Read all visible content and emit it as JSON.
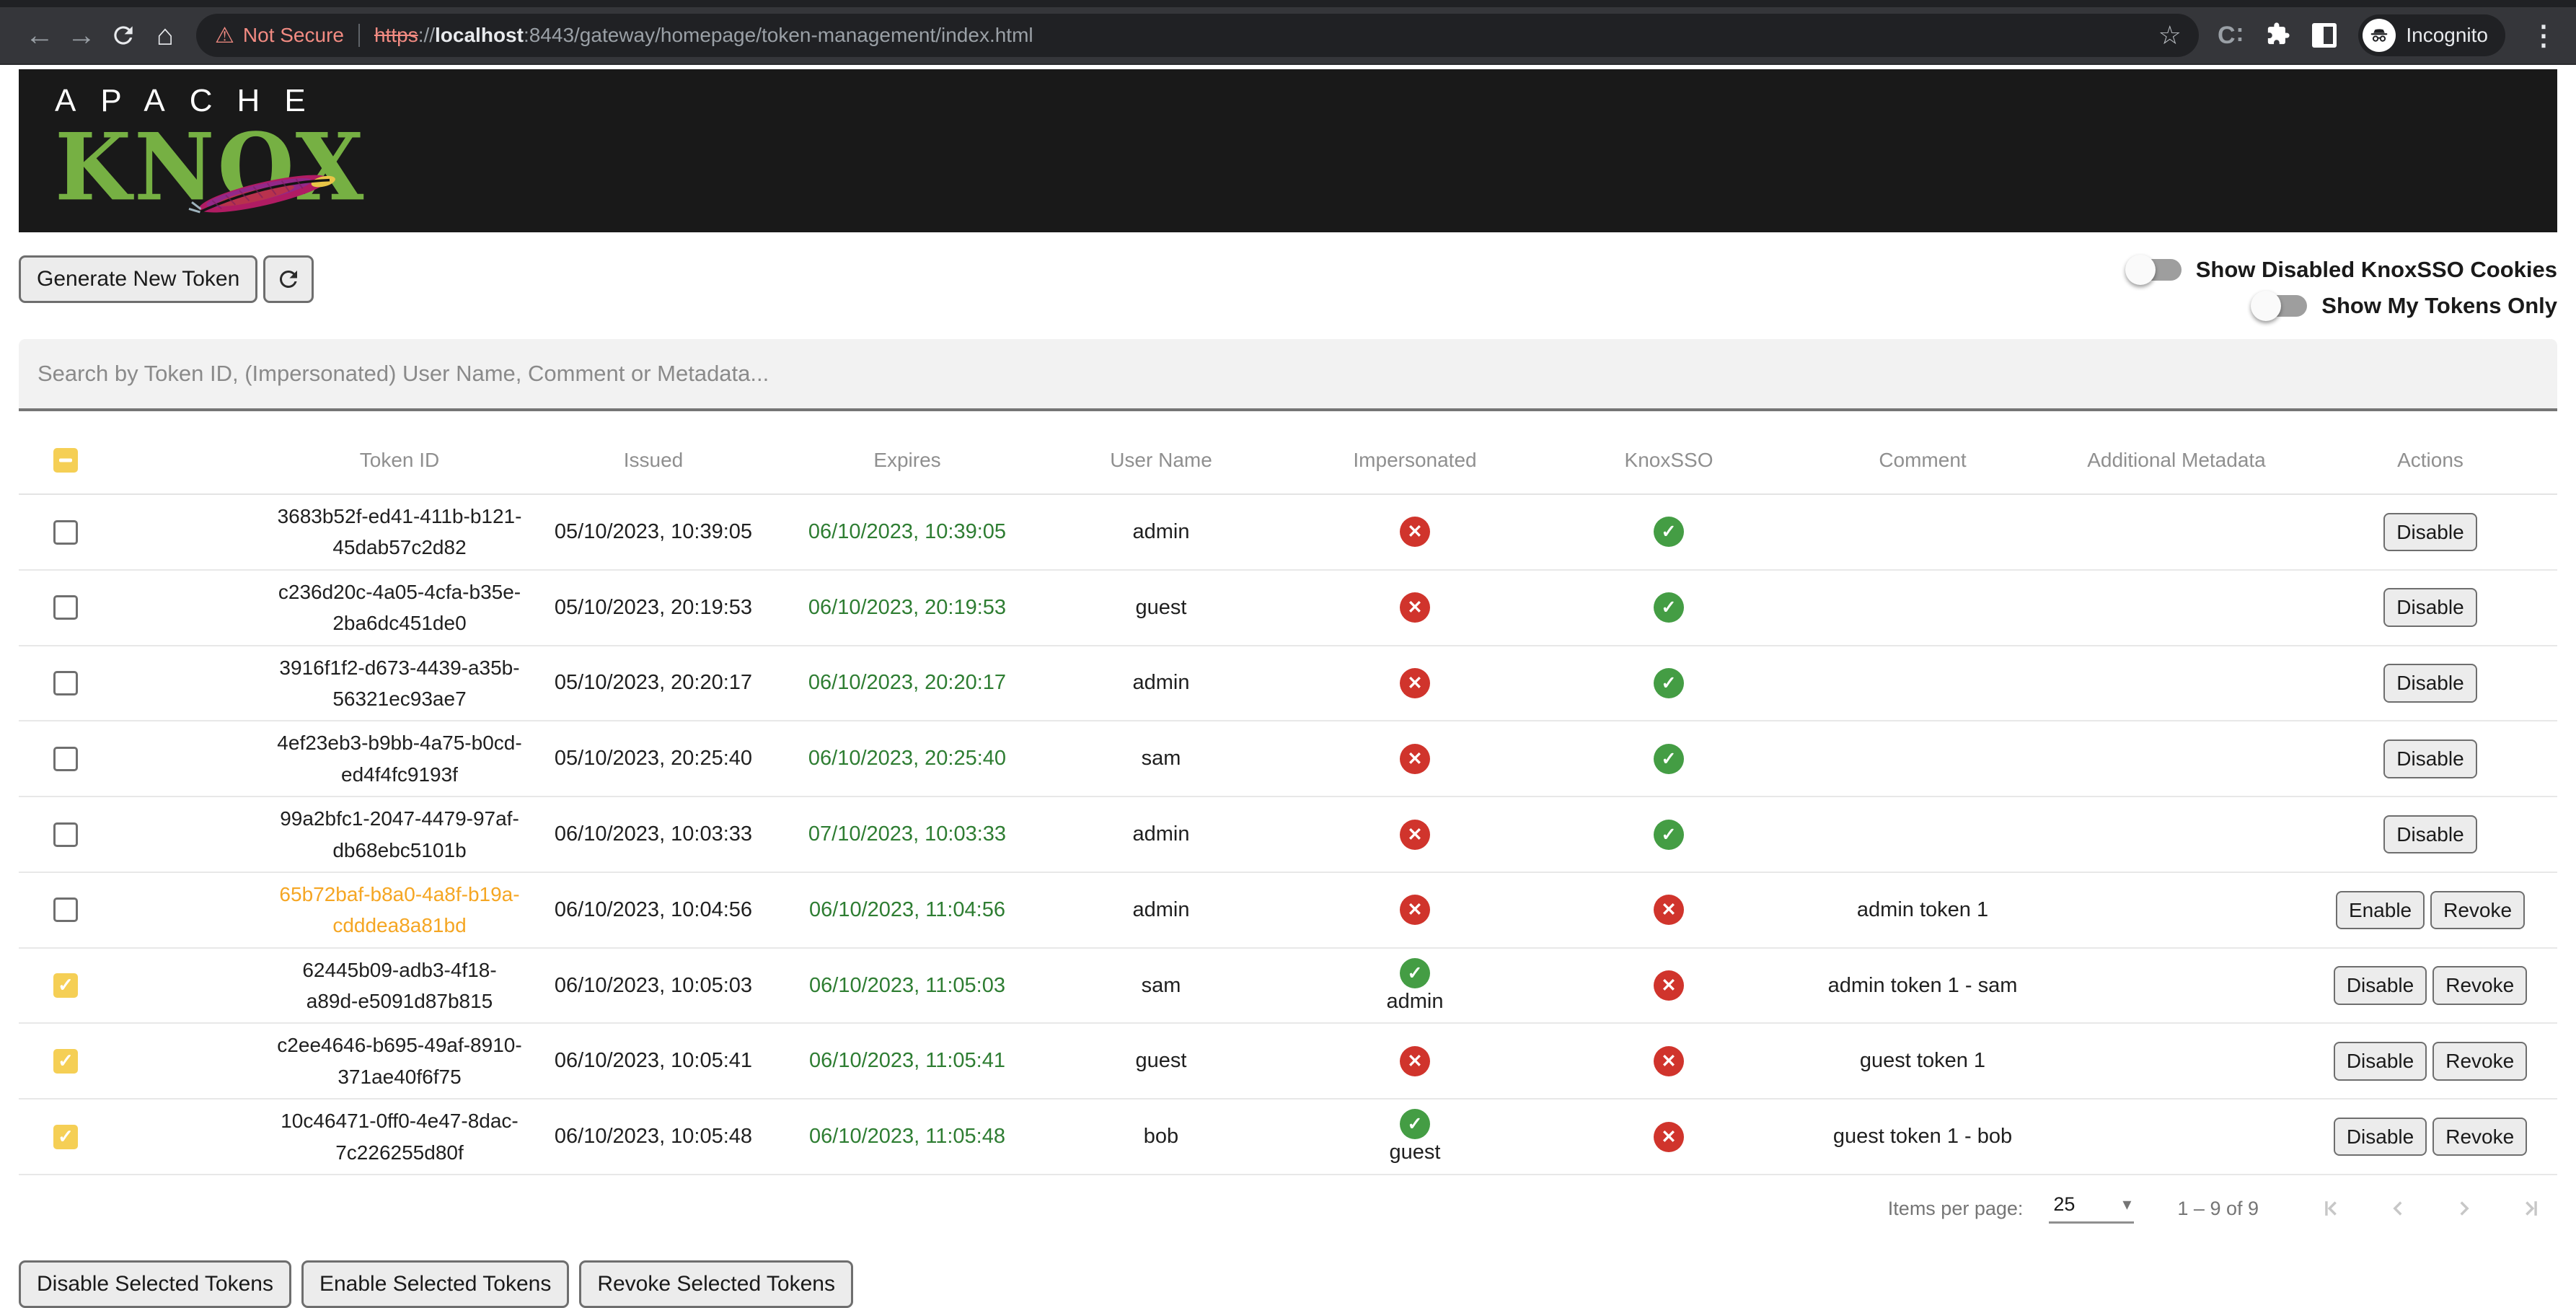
{
  "browser": {
    "not_secure_label": "Not Secure",
    "url": {
      "scheme": "https",
      "separator": "://",
      "host": "localhost",
      "rest": ":8443/gateway/homepage/token-management/index.html"
    },
    "incognito_label": "Incognito",
    "icons": {
      "back": "←",
      "forward": "→",
      "home": "⌂",
      "warning": "⚠",
      "star": "☆",
      "extension_c": "C∶",
      "menu": "⋮"
    }
  },
  "header": {
    "logo_line1": "APACHE",
    "logo_line2": "KNOX"
  },
  "toolbar": {
    "generate_label": "Generate New Token",
    "toggles": [
      {
        "label": "Show Disabled KnoxSSO Cookies",
        "on": false
      },
      {
        "label": "Show My Tokens Only",
        "on": false
      }
    ]
  },
  "search": {
    "placeholder": "Search by Token ID, (Impersonated) User Name, Comment or Metadata..."
  },
  "table": {
    "select_all_state": "indeterminate",
    "columns": [
      "",
      "Token ID",
      "Issued",
      "Expires",
      "User Name",
      "Impersonated",
      "KnoxSSO",
      "Comment",
      "Additional Metadata",
      "Actions"
    ],
    "rows": [
      {
        "checked": false,
        "token_id": "3683b52f-ed41-411b-b121-45dab57c2d82",
        "issued": "05/10/2023, 10:39:05",
        "expires": "06/10/2023, 10:39:05",
        "user": "admin",
        "impersonated": false,
        "impersonated_user": "",
        "knoxsso": true,
        "comment": "",
        "metadata": "",
        "disabled": false,
        "actions": [
          "Disable"
        ]
      },
      {
        "checked": false,
        "token_id": "c236d20c-4a05-4cfa-b35e-2ba6dc451de0",
        "issued": "05/10/2023, 20:19:53",
        "expires": "06/10/2023, 20:19:53",
        "user": "guest",
        "impersonated": false,
        "impersonated_user": "",
        "knoxsso": true,
        "comment": "",
        "metadata": "",
        "disabled": false,
        "actions": [
          "Disable"
        ]
      },
      {
        "checked": false,
        "token_id": "3916f1f2-d673-4439-a35b-56321ec93ae7",
        "issued": "05/10/2023, 20:20:17",
        "expires": "06/10/2023, 20:20:17",
        "user": "admin",
        "impersonated": false,
        "impersonated_user": "",
        "knoxsso": true,
        "comment": "",
        "metadata": "",
        "disabled": false,
        "actions": [
          "Disable"
        ]
      },
      {
        "checked": false,
        "token_id": "4ef23eb3-b9bb-4a75-b0cd-ed4f4fc9193f",
        "issued": "05/10/2023, 20:25:40",
        "expires": "06/10/2023, 20:25:40",
        "user": "sam",
        "impersonated": false,
        "impersonated_user": "",
        "knoxsso": true,
        "comment": "",
        "metadata": "",
        "disabled": false,
        "actions": [
          "Disable"
        ]
      },
      {
        "checked": false,
        "token_id": "99a2bfc1-2047-4479-97af-db68ebc5101b",
        "issued": "06/10/2023, 10:03:33",
        "expires": "07/10/2023, 10:03:33",
        "user": "admin",
        "impersonated": false,
        "impersonated_user": "",
        "knoxsso": true,
        "comment": "",
        "metadata": "",
        "disabled": false,
        "actions": [
          "Disable"
        ]
      },
      {
        "checked": false,
        "token_id": "65b72baf-b8a0-4a8f-b19a-cdddea8a81bd",
        "issued": "06/10/2023, 10:04:56",
        "expires": "06/10/2023, 11:04:56",
        "user": "admin",
        "impersonated": false,
        "impersonated_user": "",
        "knoxsso": false,
        "comment": "admin token 1",
        "metadata": "",
        "disabled": true,
        "actions": [
          "Enable",
          "Revoke"
        ]
      },
      {
        "checked": true,
        "token_id": "62445b09-adb3-4f18-a89d-e5091d87b815",
        "issued": "06/10/2023, 10:05:03",
        "expires": "06/10/2023, 11:05:03",
        "user": "sam",
        "impersonated": true,
        "impersonated_user": "admin",
        "knoxsso": false,
        "comment": "admin token 1 - sam",
        "metadata": "",
        "disabled": false,
        "actions": [
          "Disable",
          "Revoke"
        ]
      },
      {
        "checked": true,
        "token_id": "c2ee4646-b695-49af-8910-371ae40f6f75",
        "issued": "06/10/2023, 10:05:41",
        "expires": "06/10/2023, 11:05:41",
        "user": "guest",
        "impersonated": false,
        "impersonated_user": "",
        "knoxsso": false,
        "comment": "guest token 1",
        "metadata": "",
        "disabled": false,
        "actions": [
          "Disable",
          "Revoke"
        ]
      },
      {
        "checked": true,
        "token_id": "10c46471-0ff0-4e47-8dac-7c226255d80f",
        "issued": "06/10/2023, 10:05:48",
        "expires": "06/10/2023, 11:05:48",
        "user": "bob",
        "impersonated": true,
        "impersonated_user": "guest",
        "knoxsso": false,
        "comment": "guest token 1 - bob",
        "metadata": "",
        "disabled": false,
        "actions": [
          "Disable",
          "Revoke"
        ]
      }
    ],
    "status_icons": {
      "yes": "✓",
      "no": "✕"
    }
  },
  "paginator": {
    "items_per_page_label": "Items per page:",
    "page_size": "25",
    "range": "1 – 9 of 9"
  },
  "footer": {
    "buttons": [
      "Disable Selected Tokens",
      "Enable Selected Tokens",
      "Revoke Selected Tokens"
    ]
  },
  "colors": {
    "accent_amber": "#f5cf55",
    "status_green": "#449d44",
    "status_red": "#d0342c",
    "expires_green": "#2e7d32",
    "disabled_token_orange": "#f5a623",
    "knox_green": "#76b043",
    "chrome_warning": "#f28b82"
  }
}
